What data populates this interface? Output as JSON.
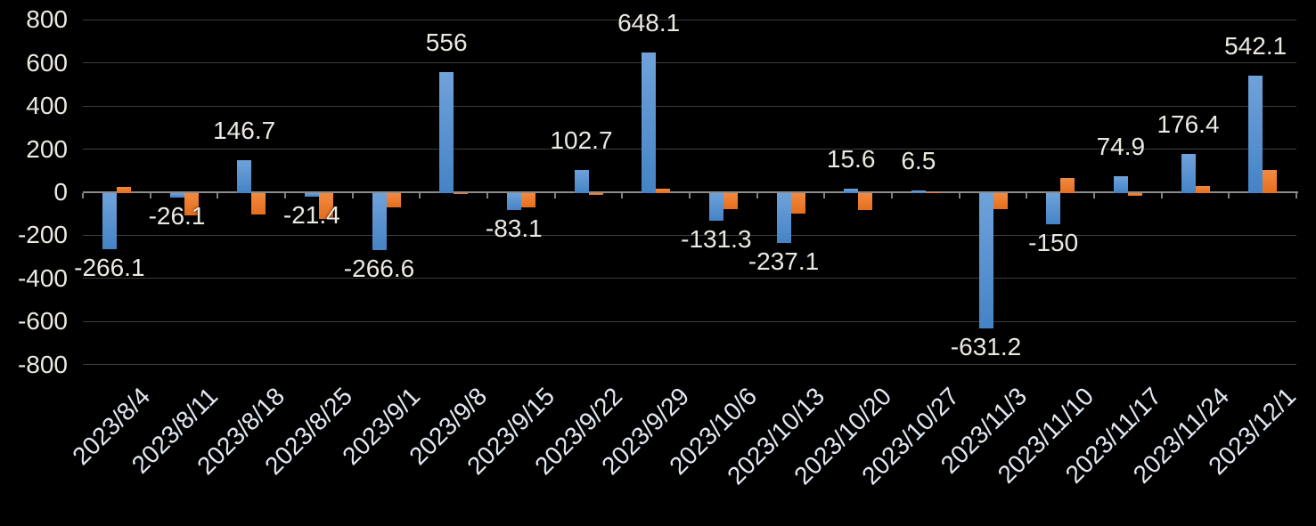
{
  "chart": {
    "background": "#000000"
  },
  "chart_data": {
    "type": "bar",
    "title": "",
    "xlabel": "",
    "ylabel": "",
    "legend": "none",
    "grid": true,
    "ylim": [
      -800,
      800
    ],
    "ytick_step": 200,
    "ytick_labels": [
      "800",
      "600",
      "400",
      "200",
      "0",
      "-200",
      "-400",
      "-600",
      "-800"
    ],
    "category_label_rotation_deg": -45,
    "axis_color": "#8C8C8C",
    "gridline_color": "#3E3E3E",
    "tick_color": "#808080",
    "number_label_color": "#ECE9E2",
    "date_label_color": "#E2E8F1",
    "categories": [
      "2023/8/4",
      "2023/8/11",
      "2023/8/18",
      "2023/8/25",
      "2023/9/1",
      "2023/9/8",
      "2023/9/15",
      "2023/9/22",
      "2023/9/29",
      "2023/10/6",
      "2023/10/13",
      "2023/10/20",
      "2023/10/27",
      "2023/11/3",
      "2023/11/10",
      "2023/11/17",
      "2023/11/24",
      "2023/12/1"
    ],
    "series": [
      {
        "name": "blue-series",
        "color": "#5B9BD5",
        "color_top": "#6FA2DA",
        "color_bottom": "#4583C5",
        "values": [
          -266.1,
          -26.1,
          146.7,
          -21.4,
          -266.6,
          556,
          -83.1,
          102.7,
          648.1,
          -131.3,
          -237.1,
          15.6,
          6.5,
          -631.2,
          -150,
          74.9,
          176.4,
          542.1
        ],
        "data_labels": [
          "-266.1",
          "-26.1",
          "146.7",
          "-21.4",
          "-266.6",
          "556",
          "-83.1",
          "102.7",
          "648.1",
          "-131.3",
          "-237.1",
          "15.6",
          "6.5",
          "-631.2",
          "-150",
          "74.9",
          "176.4",
          "542.1"
        ]
      },
      {
        "name": "orange-series",
        "color": "#ED7D31",
        "color_top": "#F18A41",
        "color_bottom": "#E56E1E",
        "values": [
          25,
          -107,
          -103,
          -126,
          -72,
          -10,
          -70,
          -12,
          18,
          -80,
          -100,
          -82,
          2,
          -80,
          65,
          -15,
          28,
          105
        ]
      }
    ]
  }
}
